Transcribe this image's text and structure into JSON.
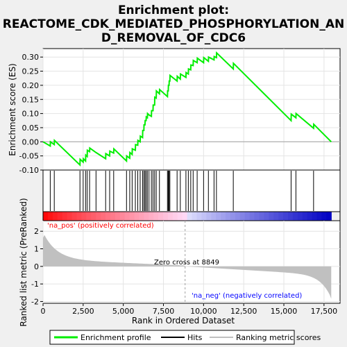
{
  "title_line1": "Enrichment plot:",
  "title_line2": "REACTOME_CDK_MEDIATED_PHOSPHORYLATION_AN",
  "title_line3": "D_REMOVAL_OF_CDC6",
  "ylabel_top": "Enrichment score (ES)",
  "ylabel_bottom": "Ranked list metric (PreRanked)",
  "xlabel": "Rank in Ordered Dataset",
  "label_pos": "'na_pos' (positively correlated)",
  "label_neg": "'na_neg' (negatively correlated)",
  "zero_cross": "Zero cross at 8849",
  "legend": {
    "enrichment": "Enrichment profile",
    "hits": "Hits",
    "metric": "Ranking metric scores"
  },
  "colors": {
    "enrichment": "#00ee00",
    "hits": "#000000",
    "metric": "#c0c0c0",
    "pos": "#ff0000",
    "neg": "#0000ff"
  },
  "chart_data": {
    "type": "line",
    "xlim": [
      0,
      18500
    ],
    "es_ylim": [
      -0.1,
      0.33
    ],
    "es_yticks": [
      -0.1,
      -0.05,
      0.0,
      0.05,
      0.1,
      0.15,
      0.2,
      0.25,
      0.3
    ],
    "es_yticklabels": [
      "-0.10",
      "-0.05",
      "0.00",
      "0.05",
      "0.10",
      "0.15",
      "0.20",
      "0.25",
      "0.30"
    ],
    "metric_ylim": [
      -2.1,
      2.6
    ],
    "metric_yticks": [
      -2,
      -1,
      0,
      1,
      2
    ],
    "xticks": [
      0,
      2500,
      5000,
      7500,
      10000,
      12500,
      15000,
      17500
    ],
    "xticklabels": [
      "0",
      "2,500",
      "5,000",
      "7,500",
      "10,000",
      "12,500",
      "15,000",
      "17,500"
    ],
    "zero_cross": 8849,
    "n_genes": 17950,
    "hits": [
      450,
      700,
      2300,
      2500,
      2650,
      2750,
      2900,
      3300,
      3900,
      4150,
      4400,
      5200,
      5400,
      5550,
      5750,
      5900,
      6050,
      6200,
      6280,
      6350,
      6420,
      6500,
      6600,
      6750,
      6850,
      6950,
      7050,
      7250,
      7750,
      7800,
      7850,
      7900,
      8350,
      8550,
      8900,
      9050,
      9200,
      9350,
      9600,
      10000,
      10300,
      10650,
      10800,
      11850,
      15450,
      15750,
      16850
    ],
    "es_points": [
      [
        0,
        0.0
      ],
      [
        450,
        -0.015
      ],
      [
        460,
        0.0
      ],
      [
        700,
        -0.01
      ],
      [
        710,
        0.005
      ],
      [
        2300,
        -0.082
      ],
      [
        2310,
        -0.062
      ],
      [
        2500,
        -0.072
      ],
      [
        2510,
        -0.06
      ],
      [
        2650,
        -0.068
      ],
      [
        2660,
        -0.047
      ],
      [
        2750,
        -0.052
      ],
      [
        2760,
        -0.03
      ],
      [
        2900,
        -0.035
      ],
      [
        2910,
        -0.022
      ],
      [
        3300,
        -0.038
      ],
      [
        3900,
        -0.06
      ],
      [
        3910,
        -0.042
      ],
      [
        4150,
        -0.05
      ],
      [
        4160,
        -0.033
      ],
      [
        4400,
        -0.04
      ],
      [
        4410,
        -0.025
      ],
      [
        5200,
        -0.068
      ],
      [
        5210,
        -0.05
      ],
      [
        5400,
        -0.058
      ],
      [
        5410,
        -0.038
      ],
      [
        5550,
        -0.045
      ],
      [
        5560,
        -0.025
      ],
      [
        5750,
        -0.03
      ],
      [
        5760,
        -0.01
      ],
      [
        5900,
        -0.012
      ],
      [
        5910,
        0.005
      ],
      [
        6050,
        0.0
      ],
      [
        6060,
        0.02
      ],
      [
        6200,
        0.015
      ],
      [
        6210,
        0.04
      ],
      [
        6280,
        0.04
      ],
      [
        6290,
        0.06
      ],
      [
        6350,
        0.06
      ],
      [
        6360,
        0.075
      ],
      [
        6420,
        0.075
      ],
      [
        6430,
        0.088
      ],
      [
        6500,
        0.085
      ],
      [
        6510,
        0.1
      ],
      [
        6600,
        0.095
      ],
      [
        6750,
        0.09
      ],
      [
        6760,
        0.11
      ],
      [
        6850,
        0.11
      ],
      [
        6860,
        0.13
      ],
      [
        6950,
        0.13
      ],
      [
        6960,
        0.158
      ],
      [
        7050,
        0.155
      ],
      [
        7060,
        0.18
      ],
      [
        7250,
        0.17
      ],
      [
        7260,
        0.185
      ],
      [
        7750,
        0.16
      ],
      [
        7760,
        0.18
      ],
      [
        7800,
        0.18
      ],
      [
        7810,
        0.2
      ],
      [
        7850,
        0.2
      ],
      [
        7860,
        0.215
      ],
      [
        7900,
        0.215
      ],
      [
        7910,
        0.235
      ],
      [
        8350,
        0.215
      ],
      [
        8360,
        0.232
      ],
      [
        8550,
        0.222
      ],
      [
        8560,
        0.24
      ],
      [
        8900,
        0.228
      ],
      [
        8910,
        0.245
      ],
      [
        9050,
        0.24
      ],
      [
        9060,
        0.258
      ],
      [
        9200,
        0.255
      ],
      [
        9210,
        0.272
      ],
      [
        9350,
        0.27
      ],
      [
        9360,
        0.288
      ],
      [
        9600,
        0.28
      ],
      [
        9610,
        0.296
      ],
      [
        10000,
        0.28
      ],
      [
        10010,
        0.298
      ],
      [
        10300,
        0.285
      ],
      [
        10310,
        0.3
      ],
      [
        10650,
        0.29
      ],
      [
        10660,
        0.302
      ],
      [
        10800,
        0.298
      ],
      [
        10810,
        0.315
      ],
      [
        11850,
        0.258
      ],
      [
        11860,
        0.278
      ],
      [
        15450,
        0.075
      ],
      [
        15460,
        0.098
      ],
      [
        15750,
        0.085
      ],
      [
        15760,
        0.1
      ],
      [
        16850,
        0.048
      ],
      [
        16860,
        0.062
      ],
      [
        17950,
        0.0
      ]
    ]
  }
}
